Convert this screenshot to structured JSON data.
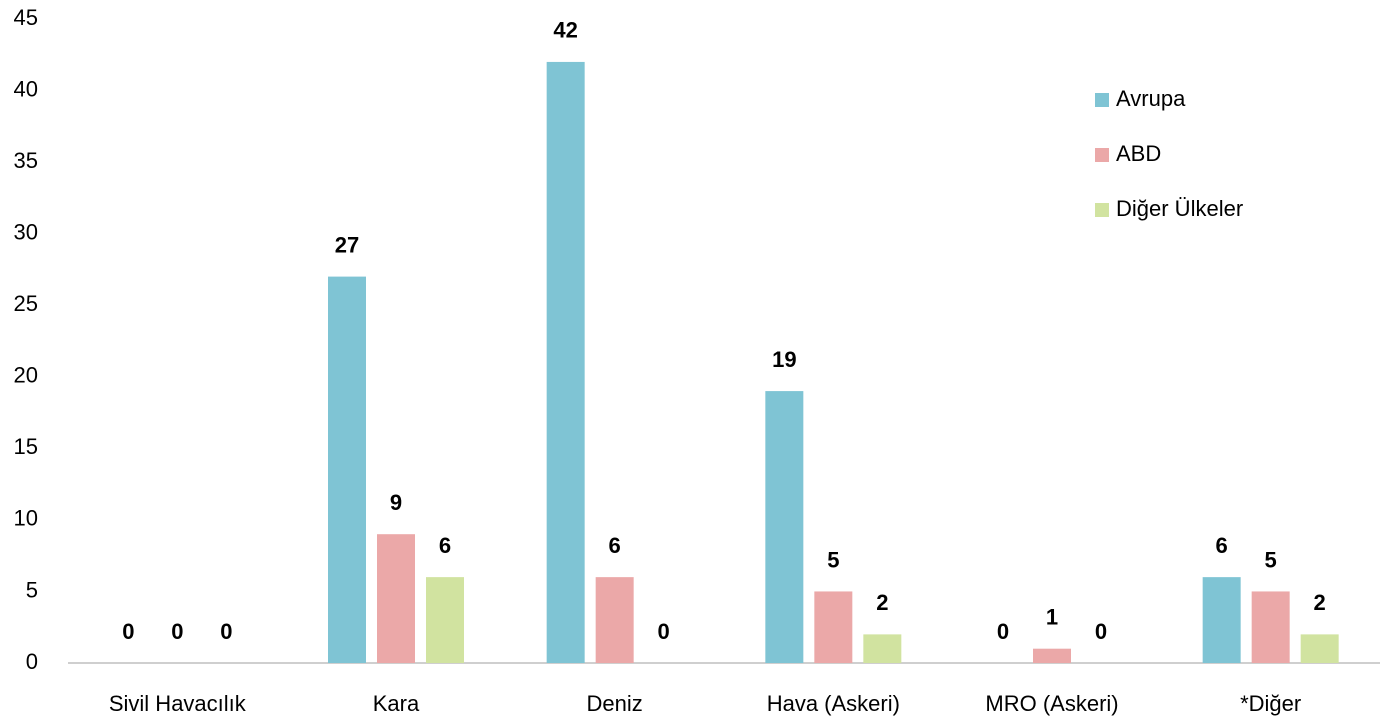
{
  "chart_data": {
    "type": "bar",
    "categories": [
      "Sivil Havacılık",
      "Kara",
      "Deniz",
      "Hava (Askeri)",
      "MRO (Askeri)",
      "*Diğer"
    ],
    "series": [
      {
        "name": "Avrupa",
        "color": "#7fc4d4",
        "values": [
          0,
          27,
          42,
          19,
          0,
          6
        ]
      },
      {
        "name": "ABD",
        "color": "#eba8a8",
        "values": [
          0,
          9,
          6,
          5,
          1,
          5
        ]
      },
      {
        "name": "Diğer Ülkeler",
        "color": "#d1e3a0",
        "values": [
          0,
          6,
          0,
          2,
          0,
          2
        ]
      }
    ],
    "ylim": [
      0,
      45
    ],
    "yticks": [
      0,
      5,
      10,
      15,
      20,
      25,
      30,
      35,
      40,
      45
    ],
    "grid": false,
    "legend": "right",
    "data_labels": true
  }
}
